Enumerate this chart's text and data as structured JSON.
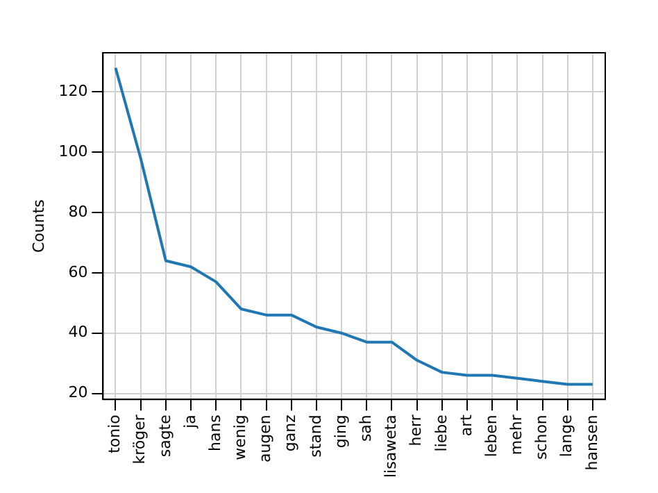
{
  "chart_data": {
    "type": "line",
    "ylabel": "Counts",
    "categories": [
      "tonio",
      "kröger",
      "sagte",
      "ja",
      "hans",
      "wenig",
      "augen",
      "ganz",
      "stand",
      "ging",
      "sah",
      "lisaweta",
      "herr",
      "liebe",
      "art",
      "leben",
      "mehr",
      "schon",
      "lange",
      "hansen"
    ],
    "series": [
      {
        "color": "#1f77b4",
        "values": [
          128,
          98,
          64,
          62,
          57,
          48,
          46,
          46,
          42,
          40,
          37,
          37,
          31,
          27,
          26,
          26,
          25,
          24,
          23,
          23
        ]
      }
    ],
    "ylim": [
      18,
      133
    ],
    "yticks": [
      20,
      40,
      60,
      80,
      100,
      120
    ],
    "grid": true,
    "legend": false,
    "marker": "none",
    "line_style": "solid"
  }
}
